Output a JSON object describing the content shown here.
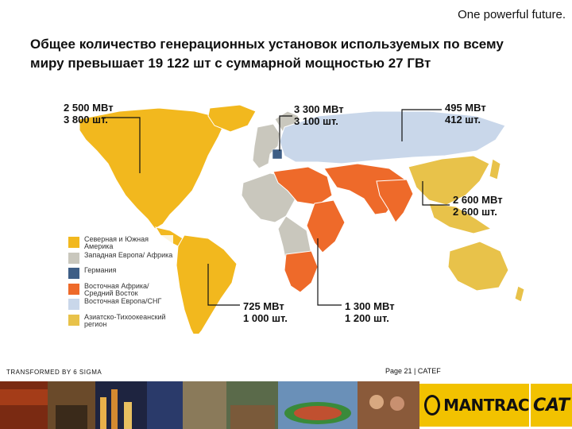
{
  "header": {
    "tagline": "One powerful future.",
    "headline": "Общее количество генерационных установок используемых по всему миру превышает 19 122 шт с суммарной мощностью 27 ГВт"
  },
  "regions": [
    {
      "line1": "2 500 МВт",
      "line2": "3 800 шт."
    },
    {
      "line1": "3 300 МВт",
      "line2": "3 100 шт."
    },
    {
      "line1": "495 МВт",
      "line2": "412 шт."
    },
    {
      "line1": "2 600 МВт",
      "line2": "2 600 шт."
    },
    {
      "line1": "725 МВт",
      "line2": "1 000 шт."
    },
    {
      "line1": "1 300 МВт",
      "line2": "1 200 шт."
    }
  ],
  "legend": [
    {
      "label": "Северная и Южная Америка",
      "color": "#f2b81e"
    },
    {
      "label": "Западная Европа/ Африка",
      "color": "#c9c7bd"
    },
    {
      "label": "Германия",
      "color": "#3e5e86"
    },
    {
      "label": "Восточная Африка/ Средний Восток",
      "color": "#ee6a2a"
    },
    {
      "label": "Восточная Европа/СНГ",
      "color": "#c9d7ea"
    },
    {
      "label": "Азиатско-Тихоокеанский регион",
      "color": "#e8c24a"
    }
  ],
  "footer": {
    "left": "TRANSFORMED BY 6 SIGMA",
    "right": "Page 21 | CATEF"
  },
  "logos": {
    "mantrac": "MANTRAC",
    "cat": "CAT"
  }
}
